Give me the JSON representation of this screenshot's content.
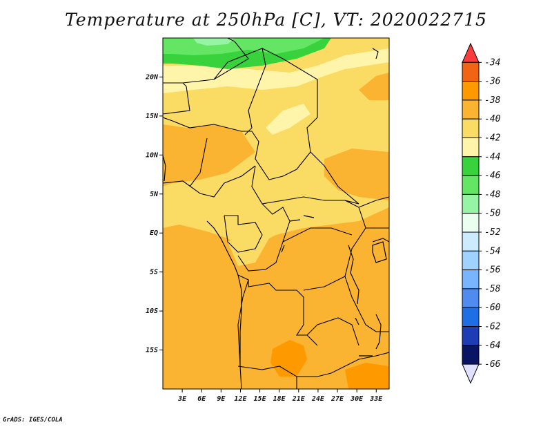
{
  "title": "Temperature at 250hPa [C], VT: 2020022715",
  "footer": "GrADS: IGES/COLA",
  "map": {
    "lon_range": [
      0,
      35
    ],
    "lat_range": [
      -20,
      25
    ],
    "lon_ticks": [
      "3E",
      "6E",
      "9E",
      "12E",
      "15E",
      "18E",
      "21E",
      "24E",
      "27E",
      "30E",
      "33E"
    ],
    "lat_ticks": [
      "20N",
      "15N",
      "10N",
      "5N",
      "EQ",
      "5S",
      "10S",
      "15S"
    ]
  },
  "colorbar": {
    "labels": [
      "-34",
      "-36",
      "-38",
      "-40",
      "-42",
      "-44",
      "-46",
      "-48",
      "-50",
      "-52",
      "-54",
      "-56",
      "-58",
      "-60",
      "-62",
      "-64",
      "-66"
    ],
    "colors": [
      "#fa3c3c",
      "#f06414",
      "#ff9900",
      "#fab432",
      "#fadc64",
      "#fff5aa",
      "#37d23c",
      "#64e664",
      "#96f5a5",
      "#ebfff0",
      "#cdebff",
      "#a0d2ff",
      "#78b4ff",
      "#508cf0",
      "#1e6ee6",
      "#1e3cb4",
      "#0a1464",
      "#e1e1ff"
    ]
  }
}
